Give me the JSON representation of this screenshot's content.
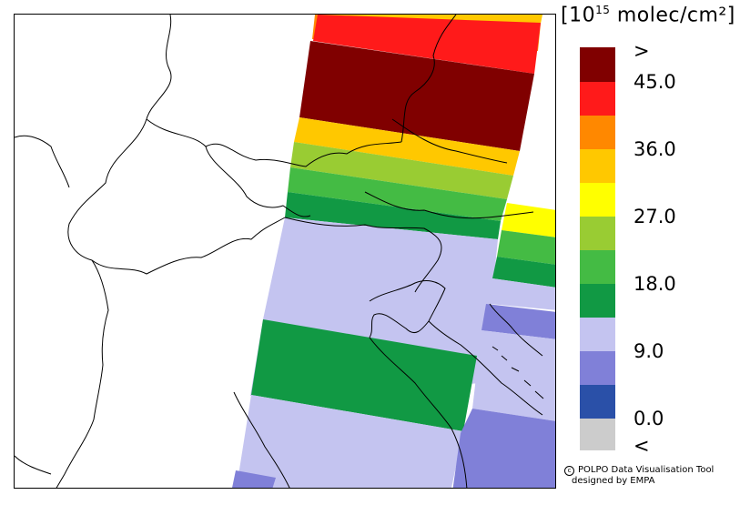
{
  "legend": {
    "title_prefix": "[10",
    "title_exp": "15",
    "title_suffix": " molec/cm²]",
    "colors": {
      "over": "#800000",
      "b45": "#ff1a1a",
      "b40": "#ff8800",
      "b36": "#ffc800",
      "b31": "#ffff00",
      "b27": "#99cc33",
      "b22": "#44bb44",
      "b18": "#119944",
      "b13": "#c4c4f0",
      "b9": "#8080d8",
      "b4": "#2a50a8",
      "under": "#cccccc"
    },
    "labels": [
      ">",
      "45.0",
      "36.0",
      "27.0",
      "18.0",
      "9.0",
      "0.0",
      "<"
    ]
  },
  "credits": {
    "line1": "POLPO Data Visualisation Tool",
    "line2": "designed by EMPA"
  }
}
